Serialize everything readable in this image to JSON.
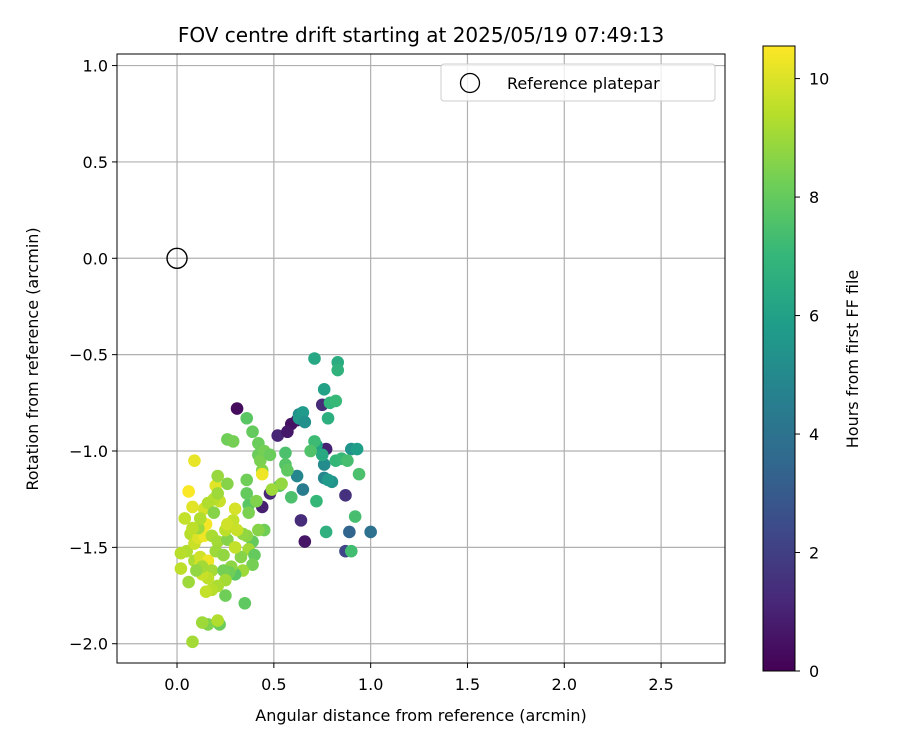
{
  "chart_data": {
    "type": "scatter",
    "title": "FOV centre drift starting at 2025/05/19 07:49:13",
    "xlabel": "Angular distance from reference (arcmin)",
    "ylabel": "Rotation from reference (arcmin)",
    "xlim": [
      -0.31,
      2.83
    ],
    "ylim": [
      -2.1,
      1.06
    ],
    "xticks": [
      0.0,
      0.5,
      1.0,
      1.5,
      2.0,
      2.5
    ],
    "xtick_labels": [
      "0.0",
      "0.5",
      "1.0",
      "1.5",
      "2.0",
      "2.5"
    ],
    "yticks": [
      1.0,
      0.5,
      0.0,
      -0.5,
      -1.0,
      -1.5,
      -2.0
    ],
    "ytick_labels": [
      "1.0",
      "0.5",
      "0.0",
      "−0.5",
      "−1.0",
      "−1.5",
      "−2.0"
    ],
    "grid": true,
    "legend": {
      "position": "top-right",
      "entries": [
        {
          "label": "Reference platepar",
          "marker": "open-circle"
        }
      ]
    },
    "reference_point": {
      "x": 0.0,
      "y": 0.0
    },
    "colorbar": {
      "label": "Hours from first FF file",
      "min": 0,
      "max": 10.55,
      "ticks": [
        0,
        2,
        4,
        6,
        8,
        10
      ],
      "tick_labels": [
        "0",
        "2",
        "4",
        "6",
        "8",
        "10"
      ],
      "colormap": "viridis",
      "stops": [
        "#440154",
        "#482878",
        "#3e4989",
        "#31688e",
        "#26828e",
        "#1f9e89",
        "#35b779",
        "#6ece58",
        "#b5de2b",
        "#fde725"
      ]
    },
    "point_columns": [
      "x",
      "y",
      "hours"
    ],
    "points": [
      [
        0.31,
        -0.78,
        0.3
      ],
      [
        0.62,
        -0.84,
        0.8
      ],
      [
        0.59,
        -0.86,
        0.5
      ],
      [
        0.52,
        -0.92,
        1.1
      ],
      [
        0.57,
        -0.9,
        0.7
      ],
      [
        0.75,
        -0.76,
        1.3
      ],
      [
        0.77,
        -0.99,
        1.0
      ],
      [
        0.48,
        -1.22,
        1.2
      ],
      [
        0.44,
        -1.29,
        0.9
      ],
      [
        0.64,
        -1.36,
        1.3
      ],
      [
        0.66,
        -1.47,
        0.6
      ],
      [
        0.87,
        -1.23,
        1.5
      ],
      [
        0.87,
        -1.52,
        2.2
      ],
      [
        0.89,
        -1.42,
        3.4
      ],
      [
        1.0,
        -1.42,
        3.9
      ],
      [
        0.65,
        -1.2,
        4.4
      ],
      [
        0.62,
        -1.13,
        4.9
      ],
      [
        0.63,
        -0.81,
        5.2
      ],
      [
        0.63,
        -0.83,
        5.6
      ],
      [
        0.65,
        -0.8,
        5.7
      ],
      [
        0.66,
        -0.85,
        5.3
      ],
      [
        0.76,
        -1.07,
        5.1
      ],
      [
        0.76,
        -1.14,
        4.9
      ],
      [
        0.8,
        -1.16,
        5.4
      ],
      [
        0.78,
        -1.15,
        5.7
      ],
      [
        0.9,
        -0.99,
        5.5
      ],
      [
        0.93,
        -0.99,
        5.9
      ],
      [
        0.72,
        -0.97,
        6.1
      ],
      [
        0.76,
        -0.68,
        6.0
      ],
      [
        0.71,
        -0.52,
        6.3
      ],
      [
        0.83,
        -0.54,
        6.5
      ],
      [
        0.83,
        -0.58,
        6.8
      ],
      [
        0.78,
        -0.83,
        6.6
      ],
      [
        0.79,
        -0.75,
        6.9
      ],
      [
        0.82,
        -0.74,
        7.1
      ],
      [
        0.71,
        -0.95,
        7.2
      ],
      [
        0.75,
        -1.02,
        6.4
      ],
      [
        0.77,
        -1.42,
        6.7
      ],
      [
        0.72,
        -1.26,
        7.0
      ],
      [
        0.82,
        -1.05,
        7.0
      ],
      [
        0.85,
        -1.04,
        7.1
      ],
      [
        0.88,
        -1.05,
        7.4
      ],
      [
        0.94,
        -1.12,
        7.5
      ],
      [
        0.92,
        -1.34,
        7.4
      ],
      [
        0.9,
        -1.52,
        7.3
      ],
      [
        0.69,
        -1.0,
        7.6
      ],
      [
        0.59,
        -1.24,
        7.5
      ],
      [
        0.56,
        -1.01,
        7.5
      ],
      [
        0.56,
        -1.07,
        7.7
      ],
      [
        0.53,
        -1.18,
        7.8
      ],
      [
        0.57,
        -1.1,
        7.9
      ],
      [
        0.36,
        -0.83,
        7.8
      ],
      [
        0.39,
        -0.9,
        8.0
      ],
      [
        0.42,
        -0.96,
        8.1
      ],
      [
        0.42,
        -1.02,
        8.1
      ],
      [
        0.26,
        -0.94,
        8.2
      ],
      [
        0.29,
        -0.95,
        8.3
      ],
      [
        0.43,
        -1.05,
        8.4
      ],
      [
        0.44,
        -1.1,
        8.5
      ],
      [
        0.45,
        -1.0,
        8.3
      ],
      [
        0.48,
        -1.02,
        8.1
      ],
      [
        0.36,
        -1.15,
        8.2
      ],
      [
        0.36,
        -1.22,
        8.0
      ],
      [
        0.37,
        -1.28,
        7.8
      ],
      [
        0.37,
        -1.32,
        8.4
      ],
      [
        0.41,
        -1.26,
        8.5
      ],
      [
        0.45,
        -1.41,
        8.2
      ],
      [
        0.42,
        -1.41,
        8.6
      ],
      [
        0.39,
        -1.47,
        8.0
      ],
      [
        0.36,
        -1.44,
        8.7
      ],
      [
        0.34,
        -1.43,
        8.8
      ],
      [
        0.37,
        -1.51,
        9.1
      ],
      [
        0.4,
        -1.54,
        8.0
      ],
      [
        0.39,
        -1.59,
        8.3
      ],
      [
        0.33,
        -1.55,
        8.6
      ],
      [
        0.34,
        -1.62,
        9.0
      ],
      [
        0.3,
        -1.64,
        7.8
      ],
      [
        0.35,
        -1.79,
        7.9
      ],
      [
        0.25,
        -1.75,
        8.2
      ],
      [
        0.22,
        -1.9,
        8.1
      ],
      [
        0.16,
        -1.9,
        8.5
      ],
      [
        0.13,
        -1.89,
        9.0
      ],
      [
        0.21,
        -1.88,
        9.3
      ],
      [
        0.08,
        -1.99,
        9.1
      ],
      [
        0.06,
        -1.68,
        9.0
      ],
      [
        0.09,
        -1.57,
        9.2
      ],
      [
        0.05,
        -1.52,
        9.3
      ],
      [
        0.02,
        -1.53,
        9.4
      ],
      [
        0.02,
        -1.61,
        9.5
      ],
      [
        0.04,
        -1.35,
        9.6
      ],
      [
        0.07,
        -1.43,
        9.4
      ],
      [
        0.09,
        -1.48,
        9.7
      ],
      [
        0.11,
        -1.45,
        10.0
      ],
      [
        0.14,
        -1.44,
        10.3
      ],
      [
        0.12,
        -1.55,
        9.8
      ],
      [
        0.15,
        -1.38,
        10.4
      ],
      [
        0.14,
        -1.3,
        9.9
      ],
      [
        0.08,
        -1.29,
        10.1
      ],
      [
        0.06,
        -1.21,
        10.5
      ],
      [
        0.09,
        -1.05,
        10.2
      ],
      [
        0.16,
        -1.57,
        10.3
      ],
      [
        0.18,
        -1.62,
        9.1
      ],
      [
        0.16,
        -1.66,
        9.5
      ],
      [
        0.13,
        -1.64,
        9.7
      ],
      [
        0.12,
        -1.59,
        9.9
      ],
      [
        0.18,
        -1.44,
        9.2
      ],
      [
        0.21,
        -1.47,
        9.1
      ],
      [
        0.2,
        -1.52,
        9.0
      ],
      [
        0.24,
        -1.54,
        8.8
      ],
      [
        0.26,
        -1.46,
        8.6
      ],
      [
        0.25,
        -1.41,
        9.5
      ],
      [
        0.29,
        -1.36,
        9.6
      ],
      [
        0.26,
        -1.38,
        9.8
      ],
      [
        0.3,
        -1.3,
        9.9
      ],
      [
        0.22,
        -1.26,
        9.7
      ],
      [
        0.19,
        -1.25,
        9.4
      ],
      [
        0.16,
        -1.27,
        9.3
      ],
      [
        0.2,
        -1.18,
        10.1
      ],
      [
        0.21,
        -1.22,
        9.0
      ],
      [
        0.19,
        -1.32,
        8.6
      ],
      [
        0.21,
        -1.13,
        8.9
      ],
      [
        0.26,
        -1.17,
        8.6
      ],
      [
        0.28,
        -1.6,
        8.7
      ],
      [
        0.27,
        -1.63,
        8.2
      ],
      [
        0.24,
        -1.62,
        8.3
      ],
      [
        0.25,
        -1.67,
        9.1
      ],
      [
        0.21,
        -1.7,
        9.2
      ],
      [
        0.18,
        -1.72,
        9.4
      ],
      [
        0.15,
        -1.73,
        9.6
      ],
      [
        0.13,
        -1.6,
        9.1
      ],
      [
        0.1,
        -1.62,
        8.8
      ],
      [
        0.11,
        -1.4,
        9.0
      ],
      [
        0.12,
        -1.35,
        9.3
      ],
      [
        0.08,
        -1.4,
        9.5
      ],
      [
        0.44,
        -1.12,
        10.3
      ],
      [
        0.49,
        -1.2,
        9.0
      ],
      [
        0.54,
        -1.17,
        8.8
      ],
      [
        0.3,
        -1.5,
        9.6
      ],
      [
        0.31,
        -1.41,
        9.7
      ]
    ]
  }
}
